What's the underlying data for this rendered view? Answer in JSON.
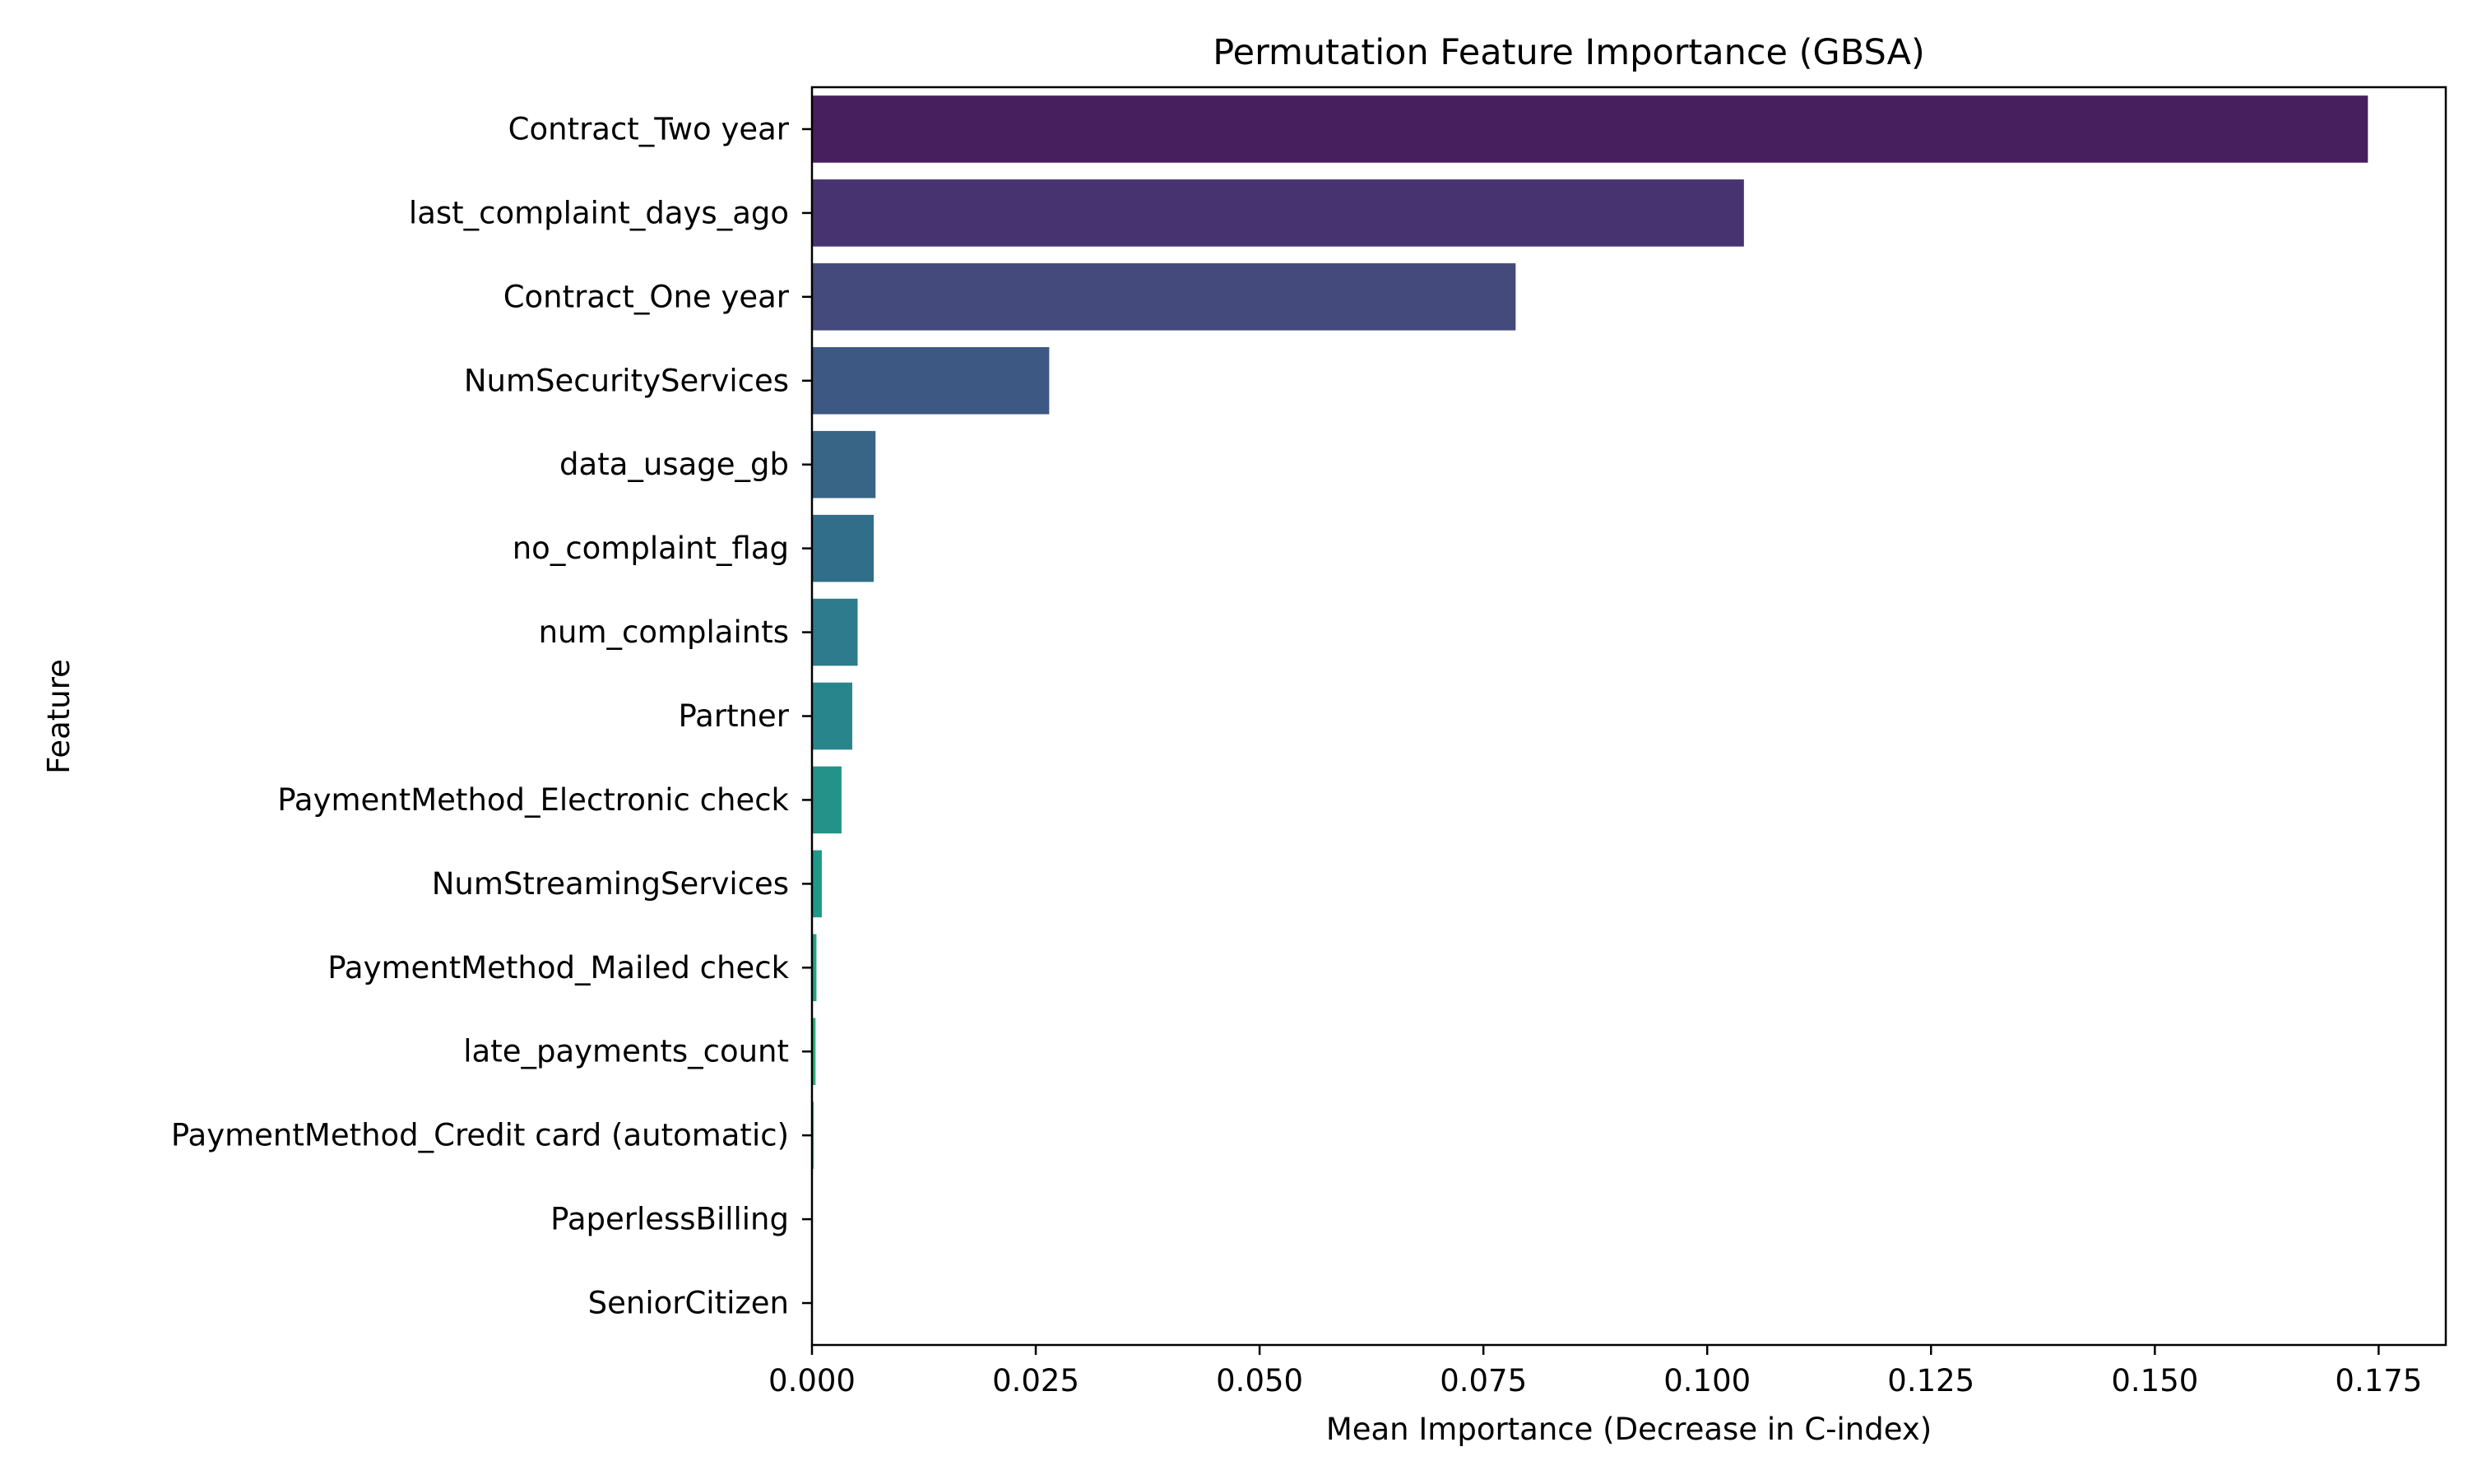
{
  "chart_data": {
    "type": "bar",
    "orientation": "horizontal",
    "title": "Permutation Feature Importance (GBSA)",
    "xlabel": "Mean Importance (Decrease in C-index)",
    "ylabel": "Feature",
    "xlim": [
      0,
      0.1825
    ],
    "xticks": [
      "0.000",
      "0.025",
      "0.050",
      "0.075",
      "0.100",
      "0.125",
      "0.150",
      "0.175"
    ],
    "grid": false,
    "legend": "none",
    "categories": [
      "Contract_Two year",
      "last_complaint_days_ago",
      "Contract_One year",
      "NumSecurityServices",
      "data_usage_gb",
      "no_complaint_flag",
      "num_complaints",
      "Partner",
      "PaymentMethod_Electronic check",
      "NumStreamingServices",
      "PaymentMethod_Mailed check",
      "late_payments_count",
      "PaymentMethod_Credit card (automatic)",
      "PaperlessBilling",
      "SeniorCitizen"
    ],
    "values": [
      0.1738,
      0.1041,
      0.0786,
      0.0265,
      0.0071,
      0.0069,
      0.0051,
      0.0045,
      0.0033,
      0.0011,
      0.0005,
      0.0004,
      0.0002,
      0.0,
      0.0
    ],
    "colors": [
      "#481f5e",
      "#47336f",
      "#444a7b",
      "#3e5884",
      "#386485",
      "#316e8a",
      "#2d7b8c",
      "#28858b",
      "#25928a",
      "#1f9a89",
      "#21a585",
      "#2ab17c",
      "#35b875",
      "#46c16d",
      "#5bc85f"
    ]
  }
}
